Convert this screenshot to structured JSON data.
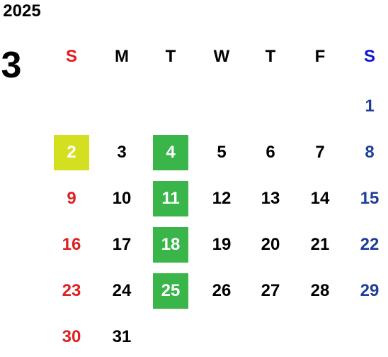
{
  "year": "2025",
  "month": "3",
  "weekdays": [
    "S",
    "M",
    "T",
    "W",
    "T",
    "F",
    "S"
  ],
  "weekday_colors": [
    "#e8141b",
    "#000000",
    "#000000",
    "#000000",
    "#000000",
    "#000000",
    "#0a14d8"
  ],
  "day_colors": [
    "#e02020",
    "#000000",
    "#000000",
    "#000000",
    "#000000",
    "#000000",
    "#1f3f99"
  ],
  "weeks": [
    [
      null,
      null,
      null,
      null,
      null,
      null,
      1
    ],
    [
      2,
      3,
      4,
      5,
      6,
      7,
      8
    ],
    [
      9,
      10,
      11,
      12,
      13,
      14,
      15
    ],
    [
      16,
      17,
      18,
      19,
      20,
      21,
      22
    ],
    [
      23,
      24,
      25,
      26,
      27,
      28,
      29
    ],
    [
      30,
      31,
      null,
      null,
      null,
      null,
      null
    ]
  ],
  "highlights": [
    [
      null,
      null,
      null,
      null,
      null,
      null,
      null
    ],
    [
      "#d4e01f",
      null,
      "#3ab54a",
      null,
      null,
      null,
      null
    ],
    [
      null,
      null,
      "#3ab54a",
      null,
      null,
      null,
      null
    ],
    [
      null,
      null,
      "#3ab54a",
      null,
      null,
      null,
      null
    ],
    [
      null,
      null,
      "#3ab54a",
      null,
      null,
      null,
      null
    ],
    [
      null,
      null,
      null,
      null,
      null,
      null,
      null
    ]
  ]
}
